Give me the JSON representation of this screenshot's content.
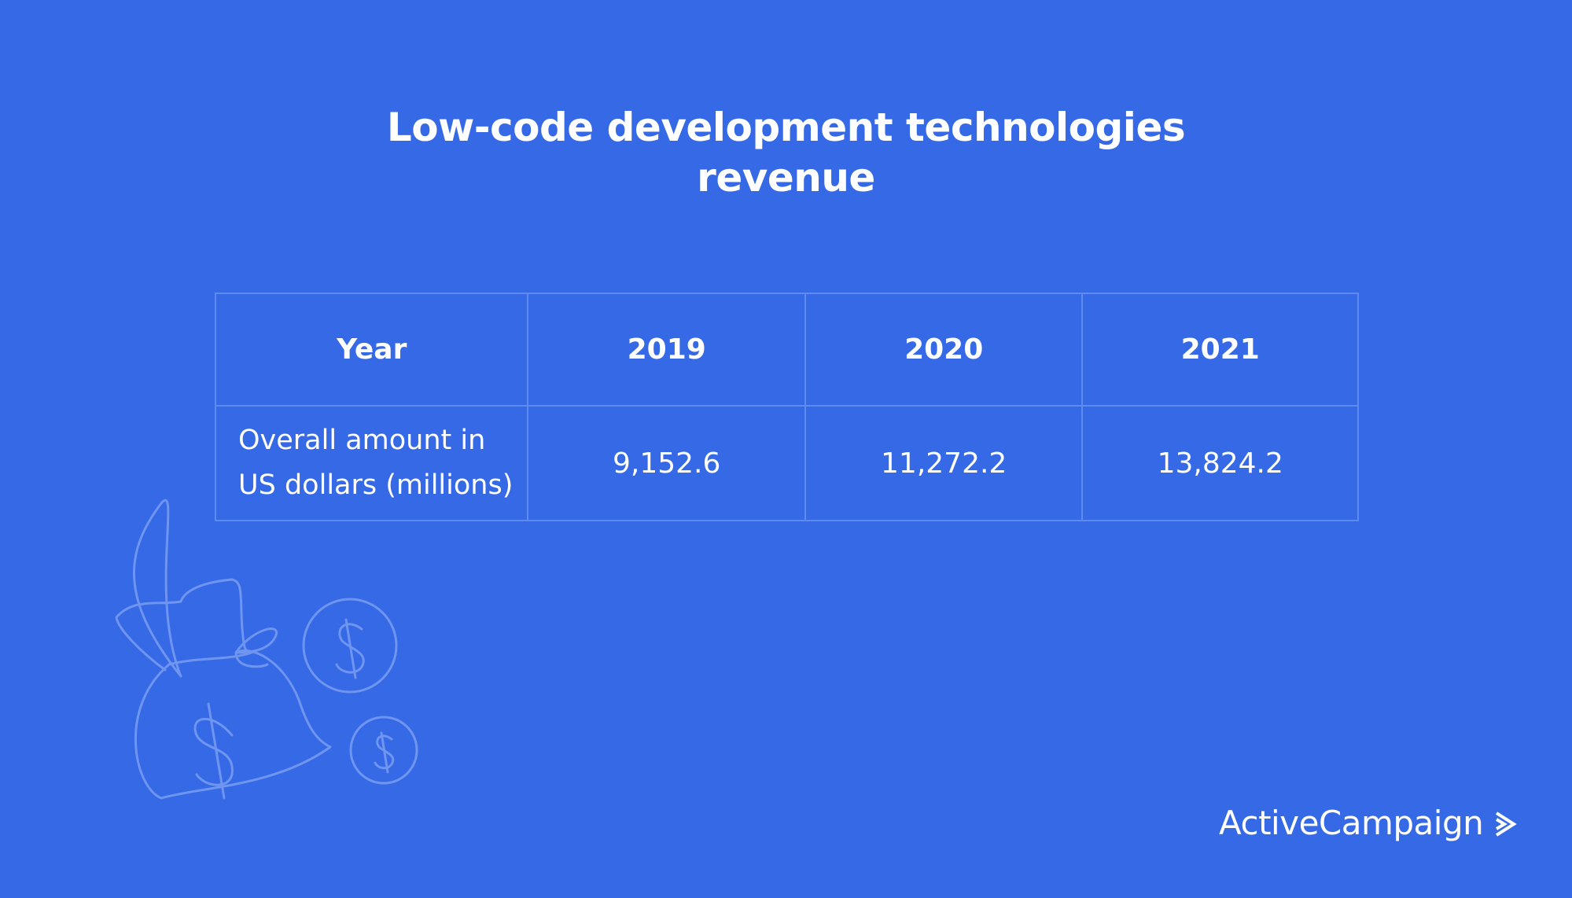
{
  "header": {
    "title": "Low-code development technologies revenue"
  },
  "table": {
    "header": [
      "Year",
      "2019",
      "2020",
      "2021"
    ],
    "rows": [
      [
        "Overall amount in US dollars (millions)",
        "9,152.6",
        "11,272.2",
        "13,824.2"
      ]
    ]
  },
  "footer": {
    "logo": "ActiveCampaign"
  }
}
